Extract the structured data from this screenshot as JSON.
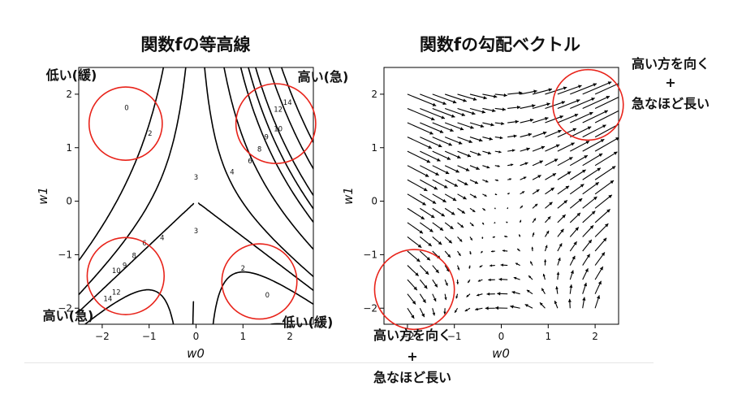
{
  "chart_data": [
    {
      "type": "contour",
      "title": "関数fの等高線",
      "xlabel": "w0",
      "ylabel": "w1",
      "xlim": [
        -2.5,
        2.5
      ],
      "ylim": [
        -2.3,
        2.5
      ],
      "xticks": [
        -2,
        -1,
        0,
        1,
        2
      ],
      "xtick_labels": [
        "−2",
        "−1",
        "0",
        "1",
        "2"
      ],
      "yticks": [
        -2,
        -1,
        0,
        1,
        2
      ],
      "ytick_labels": [
        "−2",
        "−1",
        "0",
        "1",
        "2"
      ],
      "grid": false,
      "levels": [
        0,
        2,
        3,
        4,
        6,
        8,
        9,
        10,
        12,
        14
      ],
      "contour_labels": [
        {
          "text": "0",
          "x": -1.48,
          "y": 1.75
        },
        {
          "text": "2",
          "x": -0.98,
          "y": 1.27
        },
        {
          "text": "3",
          "x": 0.0,
          "y": 0.45
        },
        {
          "text": "3",
          "x": 0.0,
          "y": -0.55
        },
        {
          "text": "4",
          "x": 0.77,
          "y": 0.55
        },
        {
          "text": "6",
          "x": 1.15,
          "y": 0.75
        },
        {
          "text": "8",
          "x": 1.35,
          "y": 0.97
        },
        {
          "text": "9",
          "x": 1.5,
          "y": 1.2
        },
        {
          "text": "10",
          "x": 1.75,
          "y": 1.35
        },
        {
          "text": "12",
          "x": 1.75,
          "y": 1.72
        },
        {
          "text": "14",
          "x": 1.95,
          "y": 1.85
        },
        {
          "text": "4",
          "x": -0.72,
          "y": -0.68
        },
        {
          "text": "6",
          "x": -1.1,
          "y": -0.78
        },
        {
          "text": "8",
          "x": -1.32,
          "y": -1.02
        },
        {
          "text": "9",
          "x": -1.52,
          "y": -1.2
        },
        {
          "text": "10",
          "x": -1.7,
          "y": -1.3
        },
        {
          "text": "12",
          "x": -1.7,
          "y": -1.7
        },
        {
          "text": "14",
          "x": -1.88,
          "y": -1.82
        },
        {
          "text": "2",
          "x": 1.0,
          "y": -1.25
        },
        {
          "text": "0",
          "x": 1.52,
          "y": -1.75
        }
      ],
      "annotations": [
        {
          "text": "低い(緩)",
          "region": "top-left"
        },
        {
          "text": "高い(急)",
          "region": "top-right"
        },
        {
          "text": "高い(急)",
          "region": "bottom-left"
        },
        {
          "text": "低い(緩)",
          "region": "bottom-right"
        }
      ],
      "highlight_circles": [
        {
          "cx": -1.5,
          "cy": 1.45,
          "r": 0.78
        },
        {
          "cx": 1.7,
          "cy": 1.45,
          "r": 0.85
        },
        {
          "cx": -1.5,
          "cy": -1.4,
          "r": 0.82
        },
        {
          "cx": 1.35,
          "cy": -1.5,
          "r": 0.8
        }
      ],
      "highlight_color": "#e8231a"
    },
    {
      "type": "quiver",
      "title": "関数fの勾配ベクトル",
      "xlabel": "w0",
      "ylabel": "w1",
      "xlim": [
        -2.5,
        2.5
      ],
      "ylim": [
        -2.3,
        2.5
      ],
      "xticks": [
        -2,
        -1,
        0,
        1,
        2
      ],
      "xtick_labels": [
        "−2",
        "−1",
        "0",
        "1",
        "2"
      ],
      "yticks": [
        -2,
        -1,
        0,
        1,
        2
      ],
      "ytick_labels": [
        "−2",
        "−1",
        "0",
        "1",
        "2"
      ],
      "grid": false,
      "grid_range": [
        -2,
        2
      ],
      "grid_points_per_axis": 16,
      "annotations": [
        {
          "line1": "高い方を向く",
          "line2": "+",
          "line3": "急なほど長い",
          "region": "top-right"
        },
        {
          "line1": "高い方を向く",
          "line2": "+",
          "line3": "急なほど長い",
          "region": "bottom-left"
        }
      ],
      "highlight_circles": [
        {
          "cx": 1.85,
          "cy": 1.8,
          "r": 0.75
        },
        {
          "cx": -1.85,
          "cy": -1.65,
          "r": 0.85
        }
      ],
      "highlight_color": "#e8231a"
    }
  ]
}
